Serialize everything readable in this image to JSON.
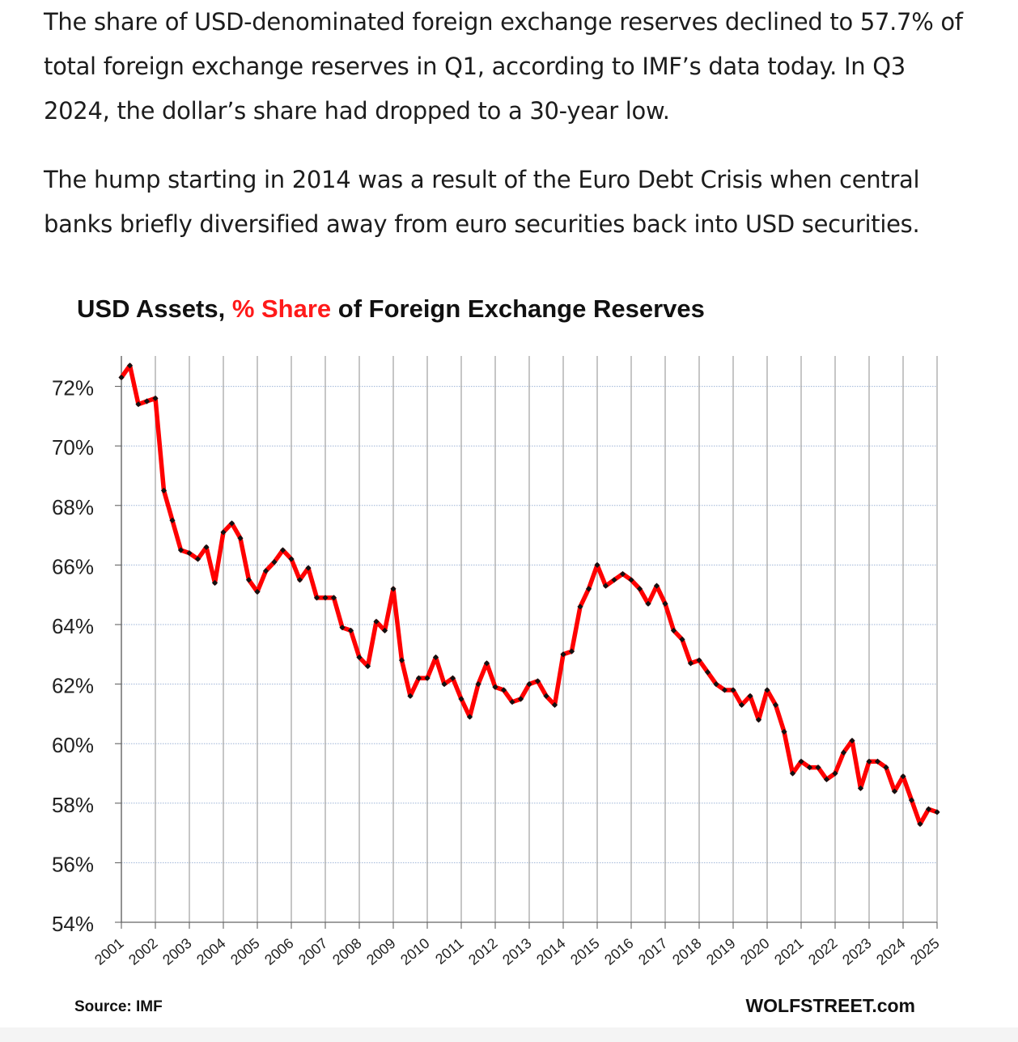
{
  "article": {
    "paragraph_1": "The share of USD-denominated foreign exchange reserves declined to 57.7% of total foreign exchange reserves in Q1, according to IMF’s data today. In Q3 2024, the dollar’s share had dropped to a 30-year low.",
    "paragraph_2": "The hump starting in 2014 was a result of the Euro Debt Crisis when central banks briefly diversified away from euro securities back into USD securities."
  },
  "chart_title": {
    "part_1": "USD Assets, ",
    "part_2": "% Share",
    "part_3": " of Foreign Exchange Reserves"
  },
  "source": "Source: IMF",
  "brand": "WOLFSTREET.com",
  "colors": {
    "line": "#ff0000",
    "marker": "#111111",
    "title_highlight": "#ff1a1a",
    "grid": "#a8a8a8"
  },
  "chart_data": {
    "type": "line",
    "title": "USD Assets, % Share of Foreign Exchange Reserves",
    "xlabel": "",
    "ylabel": "",
    "ylim": [
      54,
      73
    ],
    "y_ticks": [
      54,
      56,
      58,
      60,
      62,
      64,
      66,
      68,
      70,
      72
    ],
    "y_tick_labels": [
      "54%",
      "56%",
      "58%",
      "60%",
      "62%",
      "64%",
      "66%",
      "68%",
      "70%",
      "72%"
    ],
    "x_start": "2001 Q1",
    "x_tick_labels": [
      "2001",
      "2002",
      "2003",
      "2004",
      "2005",
      "2006",
      "2007",
      "2008",
      "2009",
      "2010",
      "2011",
      "2012",
      "2013",
      "2014",
      "2015",
      "2016",
      "2017",
      "2018",
      "2019",
      "2020",
      "2021",
      "2022",
      "2023",
      "2024",
      "2025"
    ],
    "grid": true,
    "legend": "none",
    "series": [
      {
        "values": [
          72.3,
          72.7,
          71.4,
          71.5,
          71.6,
          68.5,
          67.5,
          66.5,
          66.4,
          66.2,
          66.6,
          65.4,
          67.1,
          67.4,
          66.9,
          65.5,
          65.1,
          65.8,
          66.1,
          66.5,
          66.2,
          65.5,
          65.9,
          64.9,
          64.9,
          64.9,
          63.9,
          63.8,
          62.9,
          62.6,
          64.1,
          63.8,
          65.2,
          62.8,
          61.6,
          62.2,
          62.2,
          62.9,
          62.0,
          62.2,
          61.5,
          60.9,
          62.0,
          62.7,
          61.9,
          61.8,
          61.4,
          61.5,
          62.0,
          62.1,
          61.6,
          61.3,
          63.0,
          63.1,
          64.6,
          65.2,
          66.0,
          65.3,
          65.5,
          65.7,
          65.5,
          65.2,
          64.7,
          65.3,
          64.7,
          63.8,
          63.5,
          62.7,
          62.8,
          62.4,
          62.0,
          61.8,
          61.8,
          61.3,
          61.6,
          60.8,
          61.8,
          61.3,
          60.4,
          59.0,
          59.4,
          59.2,
          59.2,
          58.8,
          59.0,
          59.7,
          60.1,
          58.5,
          59.4,
          59.4,
          59.2,
          58.4,
          58.9,
          58.1,
          57.3,
          57.8,
          57.7
        ]
      }
    ]
  }
}
